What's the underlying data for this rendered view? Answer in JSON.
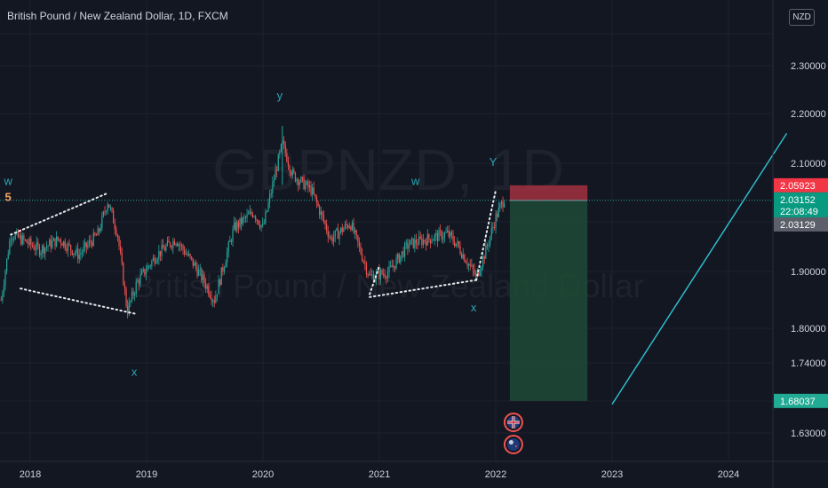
{
  "header": {
    "title": "British Pound / New Zealand Dollar, 1D, FXCM",
    "currency": "NZD"
  },
  "watermark": {
    "symbol": "GBPNZD, 1D",
    "description": "British Pound / New Zealand Dollar"
  },
  "colors": {
    "background": "#131722",
    "up": "#26a69a",
    "down": "#ef5350",
    "stop_zone": "#a3303f",
    "target_zone": "#1f4a36",
    "projection": "#2fc4d3",
    "wave": "#2ba6b6",
    "wave_five": "#f2a464"
  },
  "chart_data": {
    "type": "candlestick",
    "x_ticks": [
      "2018",
      "2019",
      "2020",
      "2021",
      "2022",
      "2023",
      "2024"
    ],
    "y_ticks": [
      "2.30000",
      "2.20000",
      "2.10000",
      "1.90000",
      "1.80000",
      "1.74000",
      "1.63000"
    ],
    "price_path": [
      {
        "date": "2017-10",
        "close": 1.85
      },
      {
        "date": "2017-11",
        "close": 1.97
      },
      {
        "date": "2017-12",
        "close": 1.96
      },
      {
        "date": "2018-02",
        "close": 1.94
      },
      {
        "date": "2018-04",
        "close": 1.96
      },
      {
        "date": "2018-06",
        "close": 1.93
      },
      {
        "date": "2018-08",
        "close": 1.97
      },
      {
        "date": "2018-09",
        "close": 2.03
      },
      {
        "date": "2018-10",
        "close": 1.97
      },
      {
        "date": "2018-11",
        "close": 1.83
      },
      {
        "date": "2018-12",
        "close": 1.88
      },
      {
        "date": "2019-02",
        "close": 1.93
      },
      {
        "date": "2019-04",
        "close": 1.96
      },
      {
        "date": "2019-06",
        "close": 1.91
      },
      {
        "date": "2019-08",
        "close": 1.85
      },
      {
        "date": "2019-10",
        "close": 1.98
      },
      {
        "date": "2019-12",
        "close": 2.01
      },
      {
        "date": "2020-01",
        "close": 1.98
      },
      {
        "date": "2020-03",
        "close": 2.14
      },
      {
        "date": "2020-04",
        "close": 2.08
      },
      {
        "date": "2020-06",
        "close": 2.05
      },
      {
        "date": "2020-08",
        "close": 1.96
      },
      {
        "date": "2020-10",
        "close": 1.99
      },
      {
        "date": "2020-12",
        "close": 1.89
      },
      {
        "date": "2021-02",
        "close": 1.9
      },
      {
        "date": "2021-04",
        "close": 1.95
      },
      {
        "date": "2021-06",
        "close": 1.96
      },
      {
        "date": "2021-08",
        "close": 1.97
      },
      {
        "date": "2021-09",
        "close": 1.95
      },
      {
        "date": "2021-11",
        "close": 1.89
      },
      {
        "date": "2021-12",
        "close": 1.94
      },
      {
        "date": "2022-01",
        "close": 2.0
      },
      {
        "date": "2022-02",
        "close": 2.04
      }
    ],
    "wave_labels": [
      {
        "text": "w",
        "date": "2017-11",
        "price": 2.06
      },
      {
        "text": "5",
        "date": "2017-11",
        "price": 2.03
      },
      {
        "text": "x",
        "date": "2018-12",
        "price": 1.72
      },
      {
        "text": "y",
        "date": "2020-03",
        "price": 2.23
      },
      {
        "text": "w",
        "date": "2021-05",
        "price": 2.06
      },
      {
        "text": "x",
        "date": "2021-11",
        "price": 1.83
      },
      {
        "text": "Y",
        "date": "2022-01",
        "price": 2.095
      }
    ],
    "trendlines": [
      {
        "from": {
          "date": "2017-11",
          "price": 1.968
        },
        "to": {
          "date": "2018-09",
          "price": 2.045
        }
      },
      {
        "from": {
          "date": "2017-12",
          "price": 1.87
        },
        "to": {
          "date": "2018-12",
          "price": 1.825
        }
      },
      {
        "from": {
          "date": "2020-12",
          "price": 1.855
        },
        "to": {
          "date": "2021-11",
          "price": 1.885
        }
      },
      {
        "from": {
          "date": "2020-12",
          "price": 1.86
        },
        "to": {
          "date": "2021-01",
          "price": 1.91
        }
      },
      {
        "from": {
          "date": "2021-11",
          "price": 1.885
        },
        "to": {
          "date": "2022-01",
          "price": 2.05
        }
      }
    ],
    "position": {
      "type": "short",
      "entry": 2.03129,
      "stop": 2.05923,
      "target": 1.68037,
      "start": "2022-02",
      "end": "2022-10"
    },
    "projection_line": {
      "from": {
        "date": "2023-01",
        "price": 1.675
      },
      "to": {
        "date": "2024-07",
        "price": 2.16
      }
    },
    "current_price": "2.03152",
    "countdown": "22:08:49",
    "price_tags": [
      "2.05923",
      "2.03129",
      "1.68037"
    ],
    "events": [
      {
        "date": "2022-02",
        "flag": "GB",
        "slot": 0
      },
      {
        "date": "2022-02",
        "flag": "NZ",
        "slot": 1
      }
    ]
  }
}
